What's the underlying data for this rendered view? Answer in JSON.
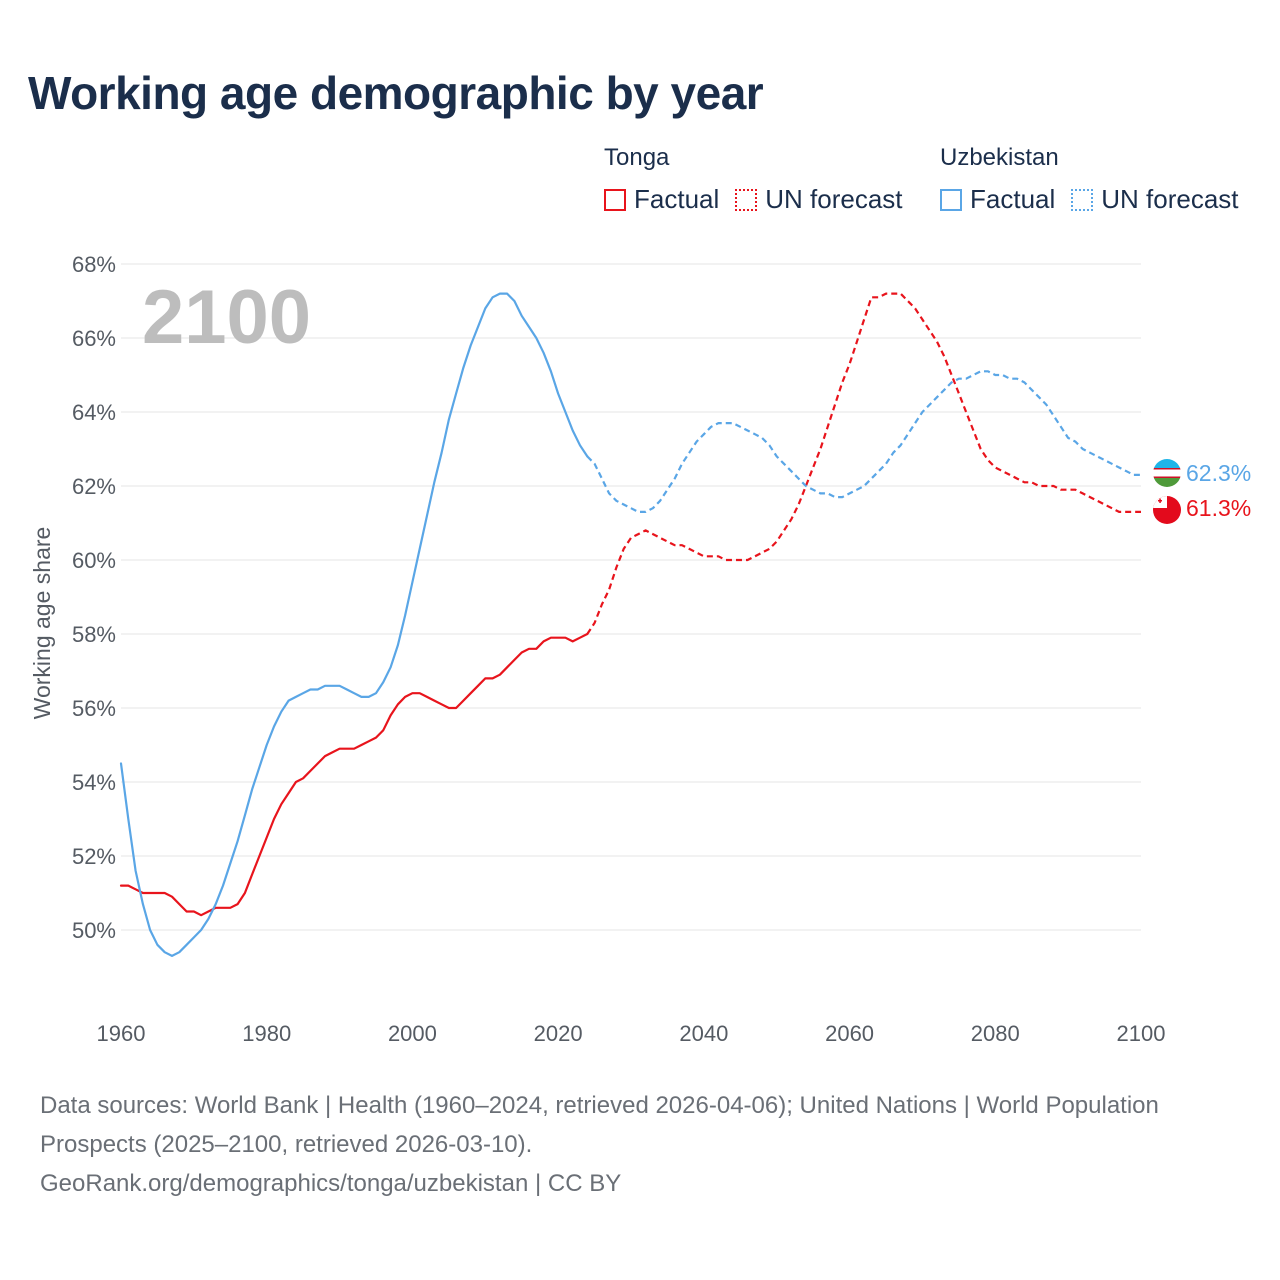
{
  "title": "Working age demographic by year",
  "legend": {
    "groups": [
      {
        "country": "Tonga",
        "color": "#e8141c",
        "factual": "Factual",
        "forecast": "UN forecast"
      },
      {
        "country": "Uzbekistan",
        "color": "#5aa6e6",
        "factual": "Factual",
        "forecast": "UN forecast"
      }
    ]
  },
  "footer": {
    "sources": "Data sources: World Bank | Health (1960–2024, retrieved 2026-04-06); United Nations | World Population Prospects (2025–2100, retrieved 2026-03-10).",
    "attribution": "GeoRank.org/demographics/tonga/uzbekistan | CC BY"
  },
  "chart_data": {
    "type": "line",
    "title": "Working age demographic by year",
    "xlabel": "",
    "ylabel": "Working age share",
    "year_display": "2100",
    "xlim": [
      1960,
      2100
    ],
    "ylim": [
      48,
      68
    ],
    "x_ticks": [
      1960,
      1980,
      2000,
      2020,
      2040,
      2060,
      2080,
      2100
    ],
    "y_ticks": [
      50,
      52,
      54,
      56,
      58,
      60,
      62,
      64,
      66,
      68
    ],
    "y_tick_suffix": "%",
    "series": [
      {
        "name": "Tonga",
        "color": "#e8141c",
        "end_label": "61.3%",
        "factual": [
          [
            1960,
            51.2
          ],
          [
            1961,
            51.2
          ],
          [
            1962,
            51.1
          ],
          [
            1963,
            51.0
          ],
          [
            1964,
            51.0
          ],
          [
            1965,
            51.0
          ],
          [
            1966,
            51.0
          ],
          [
            1967,
            50.9
          ],
          [
            1968,
            50.7
          ],
          [
            1969,
            50.5
          ],
          [
            1970,
            50.5
          ],
          [
            1971,
            50.4
          ],
          [
            1972,
            50.5
          ],
          [
            1973,
            50.6
          ],
          [
            1974,
            50.6
          ],
          [
            1975,
            50.6
          ],
          [
            1976,
            50.7
          ],
          [
            1977,
            51.0
          ],
          [
            1978,
            51.5
          ],
          [
            1979,
            52.0
          ],
          [
            1980,
            52.5
          ],
          [
            1981,
            53.0
          ],
          [
            1982,
            53.4
          ],
          [
            1983,
            53.7
          ],
          [
            1984,
            54.0
          ],
          [
            1985,
            54.1
          ],
          [
            1986,
            54.3
          ],
          [
            1987,
            54.5
          ],
          [
            1988,
            54.7
          ],
          [
            1989,
            54.8
          ],
          [
            1990,
            54.9
          ],
          [
            1991,
            54.9
          ],
          [
            1992,
            54.9
          ],
          [
            1993,
            55.0
          ],
          [
            1994,
            55.1
          ],
          [
            1995,
            55.2
          ],
          [
            1996,
            55.4
          ],
          [
            1997,
            55.8
          ],
          [
            1998,
            56.1
          ],
          [
            1999,
            56.3
          ],
          [
            2000,
            56.4
          ],
          [
            2001,
            56.4
          ],
          [
            2002,
            56.3
          ],
          [
            2003,
            56.2
          ],
          [
            2004,
            56.1
          ],
          [
            2005,
            56.0
          ],
          [
            2006,
            56.0
          ],
          [
            2007,
            56.2
          ],
          [
            2008,
            56.4
          ],
          [
            2009,
            56.6
          ],
          [
            2010,
            56.8
          ],
          [
            2011,
            56.8
          ],
          [
            2012,
            56.9
          ],
          [
            2013,
            57.1
          ],
          [
            2014,
            57.3
          ],
          [
            2015,
            57.5
          ],
          [
            2016,
            57.6
          ],
          [
            2017,
            57.6
          ],
          [
            2018,
            57.8
          ],
          [
            2019,
            57.9
          ],
          [
            2020,
            57.9
          ],
          [
            2021,
            57.9
          ],
          [
            2022,
            57.8
          ],
          [
            2023,
            57.9
          ],
          [
            2024,
            58.0
          ]
        ],
        "forecast": [
          [
            2024,
            58.0
          ],
          [
            2025,
            58.3
          ],
          [
            2026,
            58.8
          ],
          [
            2027,
            59.2
          ],
          [
            2028,
            59.8
          ],
          [
            2029,
            60.3
          ],
          [
            2030,
            60.6
          ],
          [
            2031,
            60.7
          ],
          [
            2032,
            60.8
          ],
          [
            2033,
            60.7
          ],
          [
            2034,
            60.6
          ],
          [
            2035,
            60.5
          ],
          [
            2036,
            60.4
          ],
          [
            2037,
            60.4
          ],
          [
            2038,
            60.3
          ],
          [
            2039,
            60.2
          ],
          [
            2040,
            60.1
          ],
          [
            2041,
            60.1
          ],
          [
            2042,
            60.1
          ],
          [
            2043,
            60.0
          ],
          [
            2044,
            60.0
          ],
          [
            2045,
            60.0
          ],
          [
            2046,
            60.0
          ],
          [
            2047,
            60.1
          ],
          [
            2048,
            60.2
          ],
          [
            2049,
            60.3
          ],
          [
            2050,
            60.5
          ],
          [
            2051,
            60.8
          ],
          [
            2052,
            61.1
          ],
          [
            2053,
            61.5
          ],
          [
            2054,
            62.0
          ],
          [
            2055,
            62.5
          ],
          [
            2056,
            63.0
          ],
          [
            2057,
            63.6
          ],
          [
            2058,
            64.2
          ],
          [
            2059,
            64.8
          ],
          [
            2060,
            65.3
          ],
          [
            2061,
            65.9
          ],
          [
            2062,
            66.5
          ],
          [
            2063,
            67.1
          ],
          [
            2064,
            67.1
          ],
          [
            2065,
            67.2
          ],
          [
            2066,
            67.2
          ],
          [
            2067,
            67.2
          ],
          [
            2068,
            67.0
          ],
          [
            2069,
            66.8
          ],
          [
            2070,
            66.5
          ],
          [
            2071,
            66.2
          ],
          [
            2072,
            65.9
          ],
          [
            2073,
            65.5
          ],
          [
            2074,
            65.0
          ],
          [
            2075,
            64.5
          ],
          [
            2076,
            64.0
          ],
          [
            2077,
            63.5
          ],
          [
            2078,
            63.0
          ],
          [
            2079,
            62.7
          ],
          [
            2080,
            62.5
          ],
          [
            2081,
            62.4
          ],
          [
            2082,
            62.3
          ],
          [
            2083,
            62.2
          ],
          [
            2084,
            62.1
          ],
          [
            2085,
            62.1
          ],
          [
            2086,
            62.0
          ],
          [
            2087,
            62.0
          ],
          [
            2088,
            62.0
          ],
          [
            2089,
            61.9
          ],
          [
            2090,
            61.9
          ],
          [
            2091,
            61.9
          ],
          [
            2092,
            61.8
          ],
          [
            2093,
            61.7
          ],
          [
            2094,
            61.6
          ],
          [
            2095,
            61.5
          ],
          [
            2096,
            61.4
          ],
          [
            2097,
            61.3
          ],
          [
            2098,
            61.3
          ],
          [
            2099,
            61.3
          ],
          [
            2100,
            61.3
          ]
        ]
      },
      {
        "name": "Uzbekistan",
        "color": "#5aa6e6",
        "end_label": "62.3%",
        "factual": [
          [
            1960,
            54.5
          ],
          [
            1961,
            53.0
          ],
          [
            1962,
            51.6
          ],
          [
            1963,
            50.7
          ],
          [
            1964,
            50.0
          ],
          [
            1965,
            49.6
          ],
          [
            1966,
            49.4
          ],
          [
            1967,
            49.3
          ],
          [
            1968,
            49.4
          ],
          [
            1969,
            49.6
          ],
          [
            1970,
            49.8
          ],
          [
            1971,
            50.0
          ],
          [
            1972,
            50.3
          ],
          [
            1973,
            50.7
          ],
          [
            1974,
            51.2
          ],
          [
            1975,
            51.8
          ],
          [
            1976,
            52.4
          ],
          [
            1977,
            53.1
          ],
          [
            1978,
            53.8
          ],
          [
            1979,
            54.4
          ],
          [
            1980,
            55.0
          ],
          [
            1981,
            55.5
          ],
          [
            1982,
            55.9
          ],
          [
            1983,
            56.2
          ],
          [
            1984,
            56.3
          ],
          [
            1985,
            56.4
          ],
          [
            1986,
            56.5
          ],
          [
            1987,
            56.5
          ],
          [
            1988,
            56.6
          ],
          [
            1989,
            56.6
          ],
          [
            1990,
            56.6
          ],
          [
            1991,
            56.5
          ],
          [
            1992,
            56.4
          ],
          [
            1993,
            56.3
          ],
          [
            1994,
            56.3
          ],
          [
            1995,
            56.4
          ],
          [
            1996,
            56.7
          ],
          [
            1997,
            57.1
          ],
          [
            1998,
            57.7
          ],
          [
            1999,
            58.5
          ],
          [
            2000,
            59.4
          ],
          [
            2001,
            60.3
          ],
          [
            2002,
            61.2
          ],
          [
            2003,
            62.1
          ],
          [
            2004,
            62.9
          ],
          [
            2005,
            63.8
          ],
          [
            2006,
            64.5
          ],
          [
            2007,
            65.2
          ],
          [
            2008,
            65.8
          ],
          [
            2009,
            66.3
          ],
          [
            2010,
            66.8
          ],
          [
            2011,
            67.1
          ],
          [
            2012,
            67.2
          ],
          [
            2013,
            67.2
          ],
          [
            2014,
            67.0
          ],
          [
            2015,
            66.6
          ],
          [
            2016,
            66.3
          ],
          [
            2017,
            66.0
          ],
          [
            2018,
            65.6
          ],
          [
            2019,
            65.1
          ],
          [
            2020,
            64.5
          ],
          [
            2021,
            64.0
          ],
          [
            2022,
            63.5
          ],
          [
            2023,
            63.1
          ],
          [
            2024,
            62.8
          ]
        ],
        "forecast": [
          [
            2024,
            62.8
          ],
          [
            2025,
            62.6
          ],
          [
            2026,
            62.2
          ],
          [
            2027,
            61.8
          ],
          [
            2028,
            61.6
          ],
          [
            2029,
            61.5
          ],
          [
            2030,
            61.4
          ],
          [
            2031,
            61.3
          ],
          [
            2032,
            61.3
          ],
          [
            2033,
            61.4
          ],
          [
            2034,
            61.6
          ],
          [
            2035,
            61.9
          ],
          [
            2036,
            62.2
          ],
          [
            2037,
            62.6
          ],
          [
            2038,
            62.9
          ],
          [
            2039,
            63.2
          ],
          [
            2040,
            63.4
          ],
          [
            2041,
            63.6
          ],
          [
            2042,
            63.7
          ],
          [
            2043,
            63.7
          ],
          [
            2044,
            63.7
          ],
          [
            2045,
            63.6
          ],
          [
            2046,
            63.5
          ],
          [
            2047,
            63.4
          ],
          [
            2048,
            63.3
          ],
          [
            2049,
            63.1
          ],
          [
            2050,
            62.8
          ],
          [
            2051,
            62.6
          ],
          [
            2052,
            62.4
          ],
          [
            2053,
            62.2
          ],
          [
            2054,
            62.0
          ],
          [
            2055,
            61.9
          ],
          [
            2056,
            61.8
          ],
          [
            2057,
            61.8
          ],
          [
            2058,
            61.7
          ],
          [
            2059,
            61.7
          ],
          [
            2060,
            61.8
          ],
          [
            2061,
            61.9
          ],
          [
            2062,
            62.0
          ],
          [
            2063,
            62.2
          ],
          [
            2064,
            62.4
          ],
          [
            2065,
            62.6
          ],
          [
            2066,
            62.9
          ],
          [
            2067,
            63.1
          ],
          [
            2068,
            63.4
          ],
          [
            2069,
            63.7
          ],
          [
            2070,
            64.0
          ],
          [
            2071,
            64.2
          ],
          [
            2072,
            64.4
          ],
          [
            2073,
            64.6
          ],
          [
            2074,
            64.8
          ],
          [
            2075,
            64.9
          ],
          [
            2076,
            64.9
          ],
          [
            2077,
            65.0
          ],
          [
            2078,
            65.1
          ],
          [
            2079,
            65.1
          ],
          [
            2080,
            65.0
          ],
          [
            2081,
            65.0
          ],
          [
            2082,
            64.9
          ],
          [
            2083,
            64.9
          ],
          [
            2084,
            64.8
          ],
          [
            2085,
            64.6
          ],
          [
            2086,
            64.4
          ],
          [
            2087,
            64.2
          ],
          [
            2088,
            63.9
          ],
          [
            2089,
            63.6
          ],
          [
            2090,
            63.3
          ],
          [
            2091,
            63.2
          ],
          [
            2092,
            63.0
          ],
          [
            2093,
            62.9
          ],
          [
            2094,
            62.8
          ],
          [
            2095,
            62.7
          ],
          [
            2096,
            62.6
          ],
          [
            2097,
            62.5
          ],
          [
            2098,
            62.4
          ],
          [
            2099,
            62.3
          ],
          [
            2100,
            62.3
          ]
        ]
      }
    ]
  }
}
